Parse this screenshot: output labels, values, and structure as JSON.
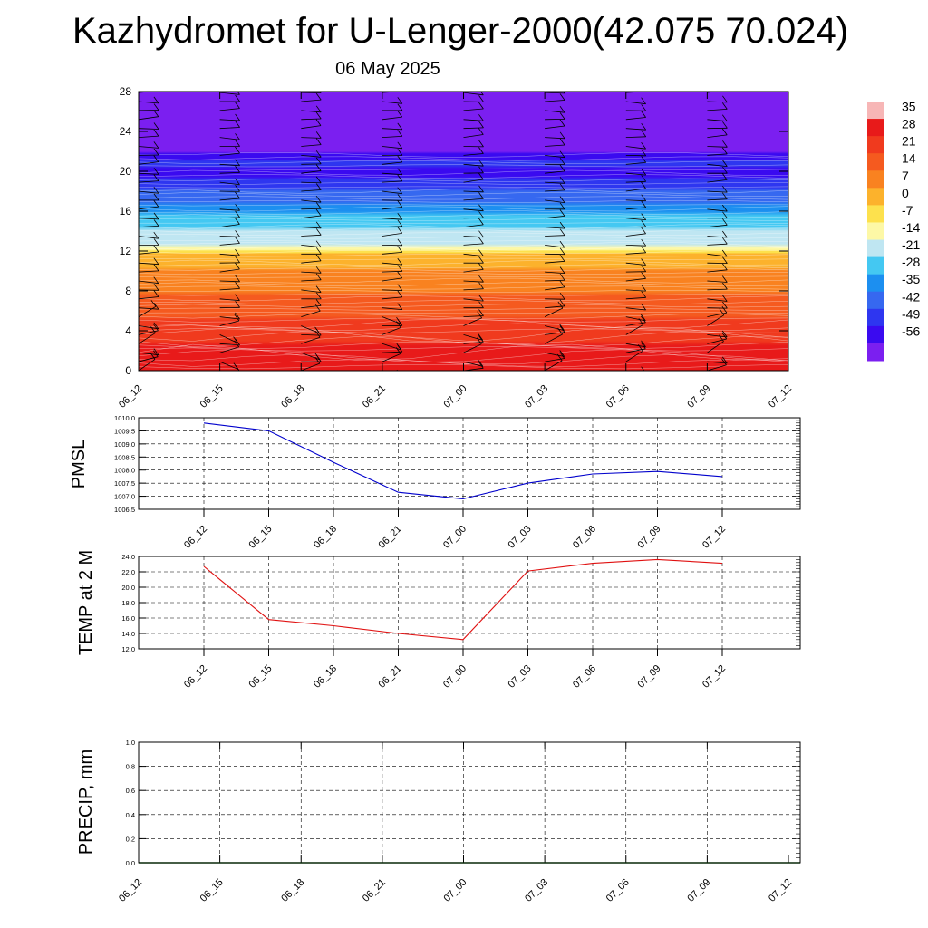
{
  "header": {
    "title": "Kazhydromet for U-Lenger-2000(42.075 70.024)",
    "date": "06 May 2025"
  },
  "chart_data": [
    {
      "type": "heatmap",
      "title": "",
      "xlabel": "",
      "ylabel": "",
      "x_ticks": [
        "06_12",
        "06_15",
        "06_18",
        "06_21",
        "07_00",
        "07_03",
        "07_06",
        "07_09",
        "07_12"
      ],
      "y_ticks": [
        0,
        4,
        8,
        12,
        16,
        20,
        24,
        28
      ],
      "ylim": [
        0,
        28
      ],
      "colorbar": {
        "labels": [
          35,
          28,
          21,
          14,
          7,
          0,
          -7,
          -14,
          -21,
          -28,
          -35,
          -42,
          -49,
          -56
        ],
        "colors": [
          "#f7b6b6",
          "#e81a1a",
          "#f03a1e",
          "#f55a1f",
          "#f98220",
          "#fcb22c",
          "#fde14d",
          "#fdf8a6",
          "#bfe6f2",
          "#44c8f2",
          "#1c8ff0",
          "#3668f0",
          "#2e36f0",
          "#3a0af0",
          "#7b1ff0"
        ]
      },
      "temperature_profile": [
        {
          "y": 0,
          "v": 31
        },
        {
          "y": 2,
          "v": 27
        },
        {
          "y": 4,
          "v": 22
        },
        {
          "y": 6,
          "v": 16
        },
        {
          "y": 8,
          "v": 10
        },
        {
          "y": 10,
          "v": 4
        },
        {
          "y": 11.7,
          "v": -3
        },
        {
          "y": 12.3,
          "v": -16
        },
        {
          "y": 14,
          "v": -24
        },
        {
          "y": 16,
          "v": -33
        },
        {
          "y": 18,
          "v": -45
        },
        {
          "y": 19.5,
          "v": -54
        },
        {
          "y": 21,
          "v": -51
        },
        {
          "y": 22,
          "v": -60
        },
        {
          "y": 28,
          "v": -62
        }
      ],
      "grid": false
    },
    {
      "type": "line",
      "ylabel": "PMSL",
      "x": [
        "06_12",
        "06_15",
        "06_18",
        "06_21",
        "07_00",
        "07_03",
        "07_06",
        "07_09",
        "07_12"
      ],
      "ylim": [
        1006.5,
        1010.0
      ],
      "y_ticks": [
        "1006.5",
        "1007.0",
        "1007.5",
        "1008.0",
        "1008.5",
        "1009.0",
        "1009.5",
        "1010.0"
      ],
      "series": [
        {
          "color": "#0000cc",
          "values": [
            1009.8,
            1009.5,
            1008.3,
            1007.15,
            1006.9,
            1007.5,
            1007.85,
            1007.95,
            1007.75
          ]
        }
      ],
      "grid": true
    },
    {
      "type": "line",
      "ylabel": "TEMP at 2 M",
      "x": [
        "06_12",
        "06_15",
        "06_18",
        "06_21",
        "07_00",
        "07_03",
        "07_06",
        "07_09",
        "07_12"
      ],
      "ylim": [
        12.0,
        24.0
      ],
      "y_ticks": [
        "12.0",
        "14.0",
        "16.0",
        "18.0",
        "20.0",
        "22.0",
        "24.0"
      ],
      "series": [
        {
          "color": "#e01010",
          "values": [
            22.7,
            15.8,
            15.0,
            14.0,
            13.2,
            22.1,
            23.1,
            23.6,
            23.1
          ]
        }
      ],
      "grid": true
    },
    {
      "type": "bar",
      "ylabel": "PRECIP, mm",
      "x": [
        "06_12",
        "06_15",
        "06_18",
        "06_21",
        "07_00",
        "07_03",
        "07_06",
        "07_09",
        "07_12"
      ],
      "ylim": [
        0.0,
        1.0
      ],
      "y_ticks": [
        "0.0",
        "0.2",
        "0.4",
        "0.6",
        "0.8",
        "1.0"
      ],
      "values": [
        0,
        0,
        0,
        0,
        0,
        0,
        0,
        0,
        0
      ],
      "grid": true
    }
  ]
}
